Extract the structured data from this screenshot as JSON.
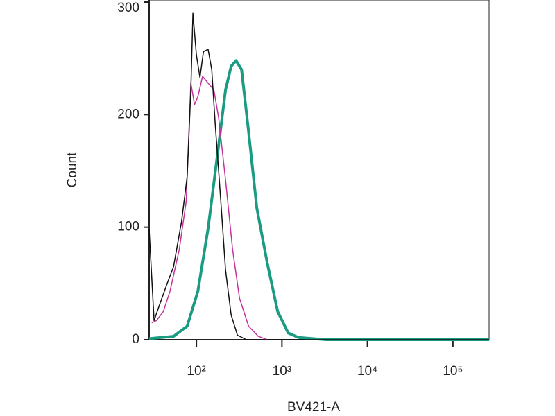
{
  "chart_data": {
    "type": "line",
    "x_label": "BV421-A",
    "y_label": "Count",
    "xscale": "log",
    "xlim": [
      28,
      265000
    ],
    "ylim": [
      0,
      300
    ],
    "xticks": [
      {
        "value": 100,
        "label": "10²"
      },
      {
        "value": 1000,
        "label": "10³"
      },
      {
        "value": 10000,
        "label": "10⁴"
      },
      {
        "value": 100000,
        "label": "10⁵"
      }
    ],
    "yticks": [
      0,
      100,
      200,
      300
    ],
    "series": [
      {
        "color": "#1b9c82",
        "width": 4,
        "x": [
          28,
          54,
          78,
          104,
          137,
          182,
          219,
          255,
          291,
          337,
          407,
          509,
          675,
          893,
          1183,
          1567,
          3311,
          265000
        ],
        "values": [
          1,
          3,
          12,
          43,
          99,
          173,
          222,
          243,
          248,
          240,
          185,
          117,
          68,
          25,
          6,
          2,
          0,
          0
        ]
      },
      {
        "color": "#c4329c",
        "width": 1.5,
        "x": [
          30,
          34,
          41,
          49,
          63,
          76,
          86,
          95,
          104,
          118,
          137,
          160,
          182,
          219,
          265,
          319,
          407,
          529,
          675
        ],
        "values": [
          15,
          17,
          25,
          43,
          80,
          123,
          228,
          209,
          216,
          234,
          228,
          222,
          197,
          142,
          80,
          37,
          12,
          3,
          0
        ]
      },
      {
        "color": "#111111",
        "width": 1.5,
        "x": [
          28,
          32,
          37,
          45,
          54,
          67,
          78,
          86,
          91,
          100,
          110,
          121,
          137,
          151,
          166,
          193,
          219,
          255,
          302,
          385,
          265000
        ],
        "values": [
          98,
          17,
          31,
          49,
          65,
          105,
          145,
          222,
          290,
          253,
          233,
          256,
          258,
          240,
          191,
          123,
          62,
          22,
          4,
          0,
          0
        ]
      }
    ]
  }
}
